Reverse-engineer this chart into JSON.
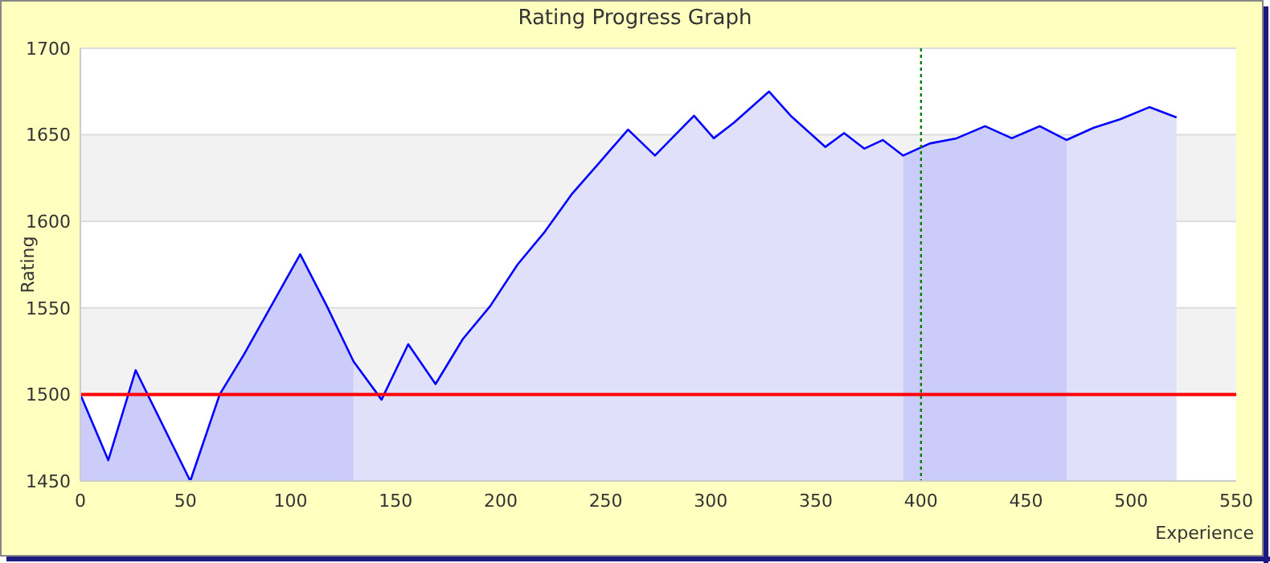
{
  "chart_data": {
    "type": "area",
    "title": "Rating Progress Graph",
    "xlabel": "Experience",
    "ylabel": "Rating",
    "series": [
      {
        "color": "#ccccfa",
        "x": [
          0,
          13.3,
          26.3,
          52.3,
          66.3,
          77.8,
          104.6,
          117.3,
          130
        ],
        "values": [
          1500,
          1462,
          1514,
          1450,
          1500,
          1523,
          1581,
          1551,
          1519
        ]
      },
      {
        "color": "#e0e0fa",
        "x": [
          130,
          143.3,
          156,
          169,
          182,
          195,
          208,
          221,
          234,
          247,
          260.6,
          273.4,
          292,
          301.4,
          311,
          327.7,
          338,
          354.5,
          363.4,
          373,
          381.8,
          391.5
        ],
        "values": [
          1519,
          1497,
          1529,
          1506,
          1532,
          1551,
          1575,
          1594,
          1616,
          1634,
          1653,
          1638,
          1661,
          1648,
          1657,
          1675,
          1661,
          1643,
          1651,
          1642,
          1647,
          1638
        ]
      },
      {
        "color": "#ccccfa",
        "x": [
          391.5,
          404.2,
          417,
          430.5,
          443.2,
          456.5,
          469.3
        ],
        "values": [
          1638,
          1645,
          1648,
          1655,
          1648,
          1655,
          1647
        ]
      },
      {
        "color": "#e0e0fa",
        "x": [
          469.3,
          482,
          494.8,
          508.8,
          521.6
        ],
        "values": [
          1647,
          1654,
          1659,
          1666,
          1660
        ]
      },
      {
        "type": "line",
        "color": "#0000ff",
        "x": [
          0,
          13.3,
          26.3,
          52.3,
          66.3,
          77.8,
          104.6,
          117.3,
          130,
          143.3,
          156,
          169,
          182,
          195,
          208,
          221,
          234,
          247,
          260.6,
          273.4,
          292,
          301.4,
          311,
          327.7,
          338,
          354.5,
          363.4,
          373,
          381.8,
          391.5,
          404.2,
          417,
          430.5,
          443.2,
          456.5,
          469.3,
          482,
          494.8,
          508.8,
          521.6
        ],
        "values": [
          1500,
          1462,
          1514,
          1450,
          1500,
          1523,
          1581,
          1551,
          1519,
          1497,
          1529,
          1506,
          1532,
          1551,
          1575,
          1594,
          1616,
          1634,
          1653,
          1638,
          1661,
          1648,
          1657,
          1675,
          1661,
          1643,
          1651,
          1642,
          1647,
          1638,
          1645,
          1648,
          1655,
          1648,
          1655,
          1647,
          1654,
          1659,
          1666,
          1660
        ]
      }
    ],
    "xlim": [
      0,
      550
    ],
    "ylim": [
      1450,
      1700
    ],
    "xticks": [
      0,
      50,
      100,
      150,
      200,
      250,
      300,
      350,
      400,
      450,
      500,
      550
    ],
    "yticks": [
      1450,
      1500,
      1550,
      1600,
      1650,
      1700
    ],
    "grid": "y",
    "marker": "none",
    "line_style": "solid",
    "ref_lines": [
      {
        "axis": "y",
        "value": 1500,
        "color": "#ff0000",
        "line_style": "solid"
      },
      {
        "axis": "x",
        "value": 400,
        "color": "#008000",
        "line_style": "dotted"
      }
    ]
  }
}
